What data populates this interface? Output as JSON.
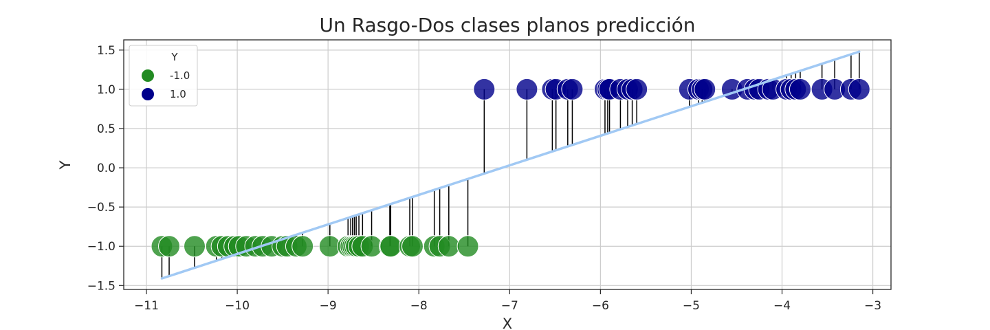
{
  "chart_data": {
    "type": "scatter",
    "title": "Un Rasgo-Dos clases planos predicción",
    "xlabel": "X",
    "ylabel": "Y",
    "xlim": [
      -11.25,
      -2.8
    ],
    "ylim": [
      -1.55,
      1.63
    ],
    "xticks": [
      -11,
      -10,
      -9,
      -8,
      -7,
      -6,
      -5,
      -4,
      -3
    ],
    "yticks": [
      -1.5,
      -1.0,
      -0.5,
      0.0,
      0.5,
      1.0,
      1.5
    ],
    "xtick_labels": [
      "−11",
      "−10",
      "−9",
      "−8",
      "−7",
      "−6",
      "−5",
      "−4",
      "−3"
    ],
    "ytick_labels": [
      "−1.5",
      "−1.0",
      "−0.5",
      "0.0",
      "0.5",
      "1.0",
      "1.5"
    ],
    "grid": true,
    "legend": {
      "title": "Y",
      "placement": "upper left",
      "entries": [
        {
          "label": "-1.0",
          "color": "#228b22"
        },
        {
          "label": "1.0",
          "color": "#00008b"
        }
      ]
    },
    "series": [
      {
        "name": "-1.0",
        "color": "#228b22",
        "y": -1.0,
        "x": [
          -10.83,
          -10.75,
          -10.47,
          -10.23,
          -10.17,
          -10.1,
          -10.03,
          -9.98,
          -9.9,
          -9.8,
          -9.72,
          -9.62,
          -9.5,
          -9.45,
          -9.35,
          -9.28,
          -8.98,
          -8.78,
          -8.75,
          -8.73,
          -8.71,
          -8.69,
          -8.66,
          -8.62,
          -8.52,
          -8.32,
          -8.31,
          -8.1,
          -8.07,
          -7.83,
          -7.77,
          -7.67,
          -7.46
        ]
      },
      {
        "name": "1.0",
        "color": "#00008b",
        "y": 1.0,
        "x": [
          -7.28,
          -6.81,
          -6.53,
          -6.49,
          -6.36,
          -6.31,
          -5.95,
          -5.92,
          -5.9,
          -5.78,
          -5.7,
          -5.65,
          -5.6,
          -5.02,
          -4.92,
          -4.88,
          -4.85,
          -4.55,
          -4.38,
          -4.3,
          -4.25,
          -4.15,
          -4.1,
          -3.95,
          -3.9,
          -3.85,
          -3.8,
          -3.56,
          -3.42,
          -3.24,
          -3.15
        ]
      }
    ],
    "prediction_line": {
      "color": "#a1c9f4",
      "x": [
        -10.83,
        -3.15
      ],
      "y": [
        -1.41,
        1.48
      ]
    }
  }
}
